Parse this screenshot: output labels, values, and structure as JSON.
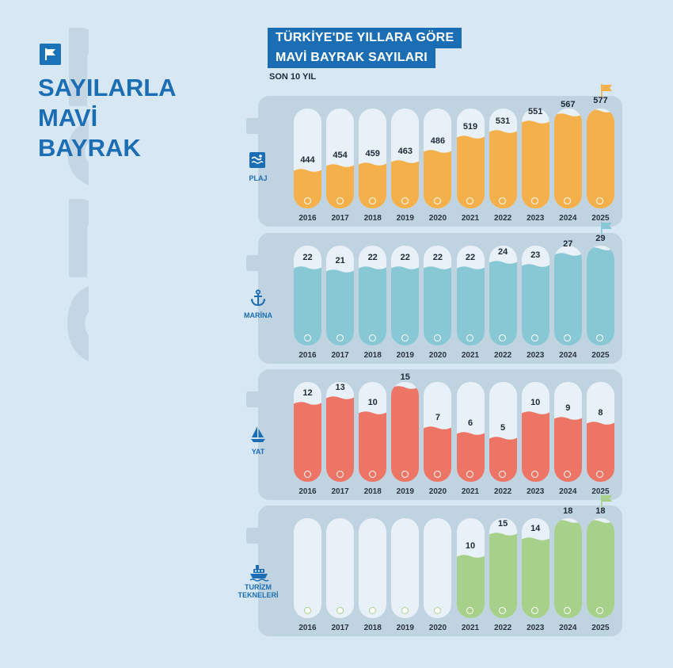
{
  "decor": {
    "big_year": "2025",
    "logo_icon": "flag-icon"
  },
  "headline": {
    "line1": "SAYILARLA",
    "line2": "MAVİ",
    "line3": "BAYRAK"
  },
  "colors": {
    "brand": "#1b6db4",
    "plaj": "#f4b14b",
    "marina": "#88c8d5",
    "yat": "#ec7566",
    "turizm": "#a7d18a"
  },
  "chart_data": {
    "type": "bar",
    "title": "TÜRKİYE'DE YILLARA GÖRE",
    "title_line2": "MAVİ BAYRAK SAYILARI",
    "subtitle": "SON 10 YIL",
    "categories": [
      "2016",
      "2017",
      "2018",
      "2019",
      "2020",
      "2021",
      "2022",
      "2023",
      "2024",
      "2025"
    ],
    "series": [
      {
        "name": "PLAJ",
        "icon": "beach-icon",
        "color": "#f4b14b",
        "values": [
          444,
          454,
          459,
          463,
          486,
          519,
          531,
          551,
          567,
          577
        ],
        "ylim": [
          400,
          580
        ]
      },
      {
        "name": "MARİNA",
        "icon": "anchor-icon",
        "color": "#88c8d5",
        "values": [
          22,
          21,
          22,
          22,
          22,
          22,
          24,
          23,
          27,
          29
        ],
        "ylim": [
          0,
          30
        ]
      },
      {
        "name": "YAT",
        "icon": "sailboat-icon",
        "color": "#ec7566",
        "values": [
          12,
          13,
          10,
          15,
          7,
          6,
          5,
          10,
          9,
          8
        ],
        "ylim": [
          0,
          16
        ]
      },
      {
        "name": "TURİZM TEKNELERİ",
        "icon": "ship-icon",
        "color": "#a7d18a",
        "values": [
          null,
          null,
          null,
          null,
          null,
          10,
          15,
          14,
          18,
          18
        ],
        "ylim": [
          0,
          18.5
        ]
      }
    ]
  }
}
